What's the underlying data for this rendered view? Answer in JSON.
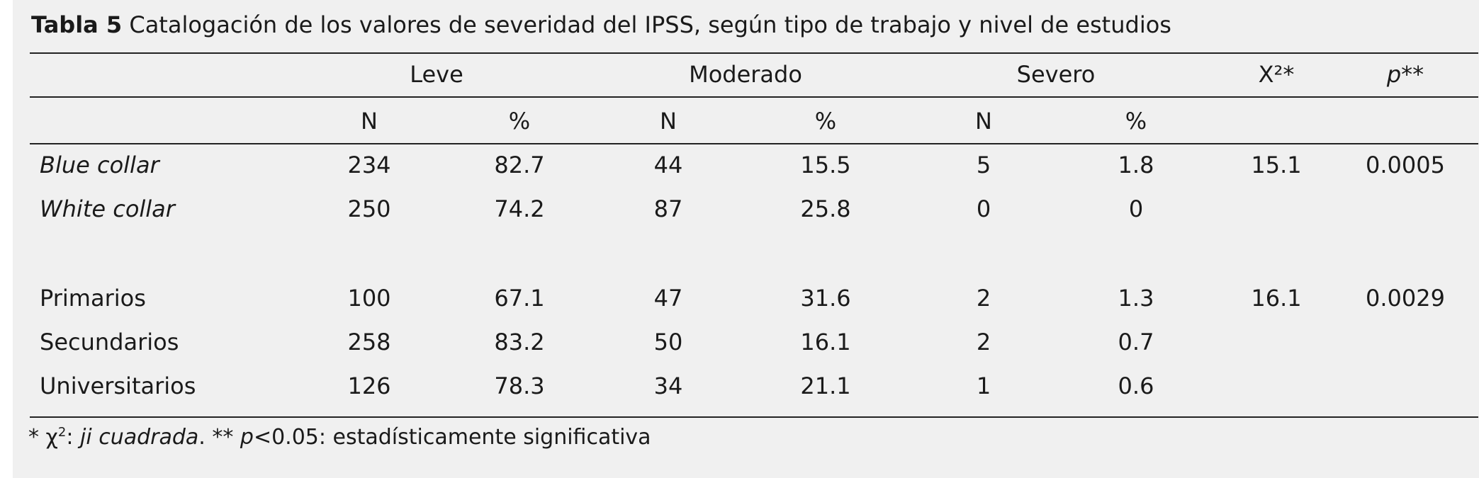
{
  "table": {
    "title_label": "Tabla 5",
    "title_text": "Catalogación de los valores de severidad del IPSS, según tipo de trabajo y nivel de estudios",
    "groups": [
      "Leve",
      "Moderado",
      "Severo"
    ],
    "chi_header": "X²*",
    "p_header": "p**",
    "subheaders": [
      "N",
      "%",
      "N",
      "%",
      "N",
      "%"
    ],
    "rows": [
      {
        "label": "Blue collar",
        "italic": true,
        "values": [
          "234",
          "82.7",
          "44",
          "15.5",
          "5",
          "1.8"
        ],
        "chi": "15.1",
        "p": "0.0005"
      },
      {
        "label": "White collar",
        "italic": true,
        "values": [
          "250",
          "74.2",
          "87",
          "25.8",
          "0",
          "0"
        ],
        "chi": "",
        "p": ""
      },
      {
        "label": "Primarios",
        "italic": false,
        "values": [
          "100",
          "67.1",
          "47",
          "31.6",
          "2",
          "1.3"
        ],
        "chi": "16.1",
        "p": "0.0029"
      },
      {
        "label": "Secundarios",
        "italic": false,
        "values": [
          "258",
          "83.2",
          "50",
          "16.1",
          "2",
          "0.7"
        ],
        "chi": "",
        "p": ""
      },
      {
        "label": "Universitarios",
        "italic": false,
        "values": [
          "126",
          "78.3",
          "34",
          "21.1",
          "1",
          "0.6"
        ],
        "chi": "",
        "p": ""
      }
    ],
    "footnote": {
      "chi_symbol": "χ",
      "chi_sup": "2",
      "chi_name": "ji cuadrada",
      "p_symbol": "p",
      "p_text": "<0.05: estadísticamente significativa"
    }
  }
}
